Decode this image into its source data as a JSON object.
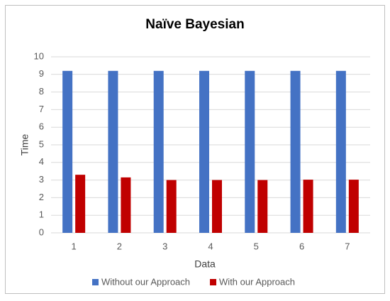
{
  "chart_data": {
    "type": "bar",
    "title": "Naïve Bayesian",
    "x_label": "Data",
    "y_label": "Time",
    "categories": [
      "1",
      "2",
      "3",
      "4",
      "5",
      "6",
      "7"
    ],
    "series": [
      {
        "name": "Without our Approach",
        "color": "#4472c4",
        "values": [
          9.2,
          9.2,
          9.2,
          9.2,
          9.2,
          9.2,
          9.2
        ]
      },
      {
        "name": "With our Approach",
        "color": "#c00000",
        "values": [
          3.3,
          3.15,
          3.0,
          3.0,
          3.0,
          3.02,
          3.02
        ]
      }
    ],
    "ylim": [
      0,
      10
    ],
    "yticks": [
      0,
      1,
      2,
      3,
      4,
      5,
      6,
      7,
      8,
      9,
      10
    ],
    "grid": true,
    "legend": "bottom"
  }
}
